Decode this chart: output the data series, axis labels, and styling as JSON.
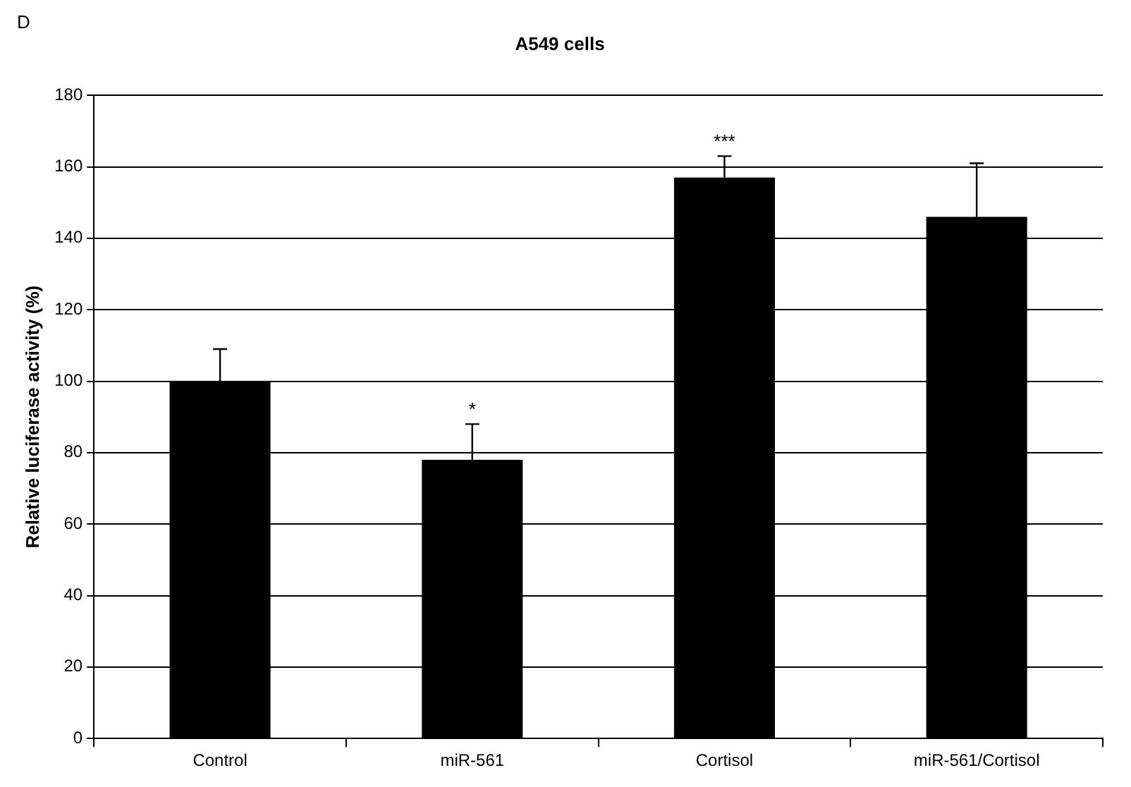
{
  "chart_data": {
    "type": "bar",
    "title": "A549 cells",
    "ylabel": "Relative luciferase activity (%)",
    "categories": [
      "Control",
      "miR-561",
      "Cortisol",
      "miR-561/Cortisol"
    ],
    "values": [
      100,
      78,
      157,
      146
    ],
    "color": "#000000",
    "errors": [
      [
        100,
        109
      ],
      [
        78,
        88
      ],
      [
        157,
        163
      ],
      [
        146,
        161
      ]
    ],
    "ylim": [
      0,
      180
    ],
    "yticks": [
      0,
      20,
      40,
      60,
      80,
      100,
      120,
      140,
      160,
      180
    ],
    "grid": "y",
    "legend": false,
    "annotations": [
      "D",
      {
        "text": "*",
        "x": "miR-561",
        "y": 88
      },
      {
        "text": "***",
        "x": "Cortisol",
        "y": 163
      }
    ]
  }
}
